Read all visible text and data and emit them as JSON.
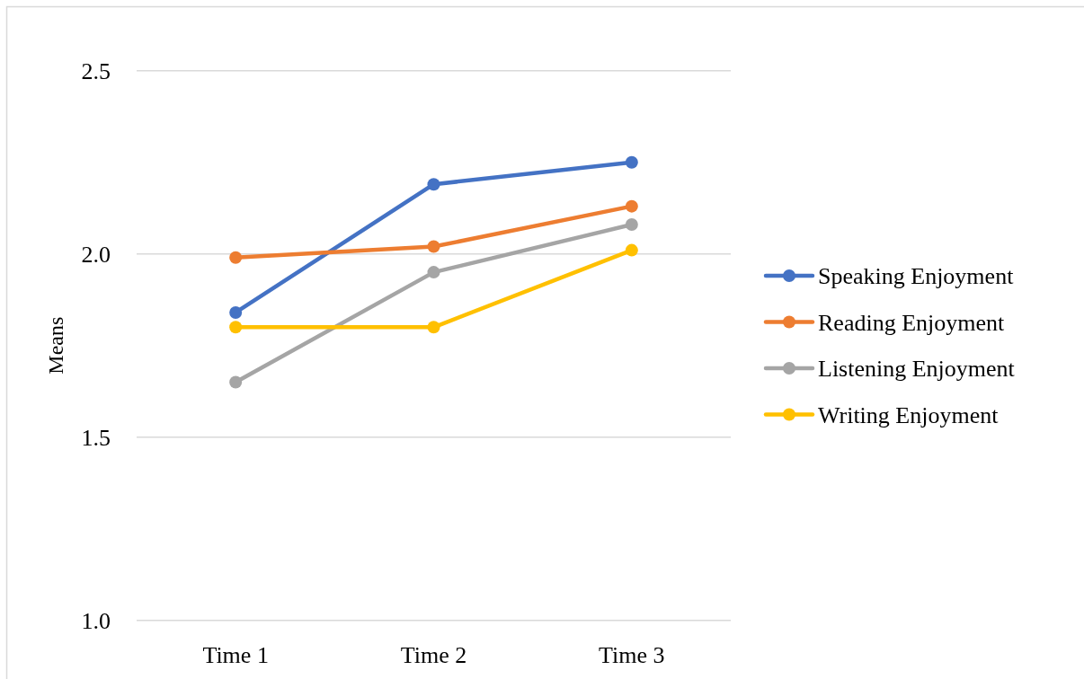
{
  "chart_data": {
    "type": "line",
    "ylabel": "Means",
    "categories": [
      "Time 1",
      "Time 2",
      "Time 3"
    ],
    "series": [
      {
        "name": "Speaking Enjoyment",
        "color": "#4472c4",
        "values": [
          1.84,
          2.19,
          2.25
        ]
      },
      {
        "name": "Reading Enjoyment",
        "color": "#ed7d31",
        "values": [
          1.99,
          2.02,
          2.13
        ]
      },
      {
        "name": "Listening Enjoyment",
        "color": "#a5a5a5",
        "values": [
          1.65,
          1.95,
          2.08
        ]
      },
      {
        "name": "Writing Enjoyment",
        "color": "#ffc000",
        "values": [
          1.8,
          1.8,
          2.01
        ]
      }
    ],
    "ylim": [
      1,
      2.5
    ],
    "yticks": [
      {
        "value": 1,
        "label": "1.0"
      },
      {
        "value": 1.5,
        "label": "1.5"
      },
      {
        "value": 2,
        "label": "2.0"
      },
      {
        "value": 2.5,
        "label": "2.5"
      }
    ],
    "grid": "y",
    "legend": "right",
    "marker": "circle",
    "line_style": "solid"
  }
}
